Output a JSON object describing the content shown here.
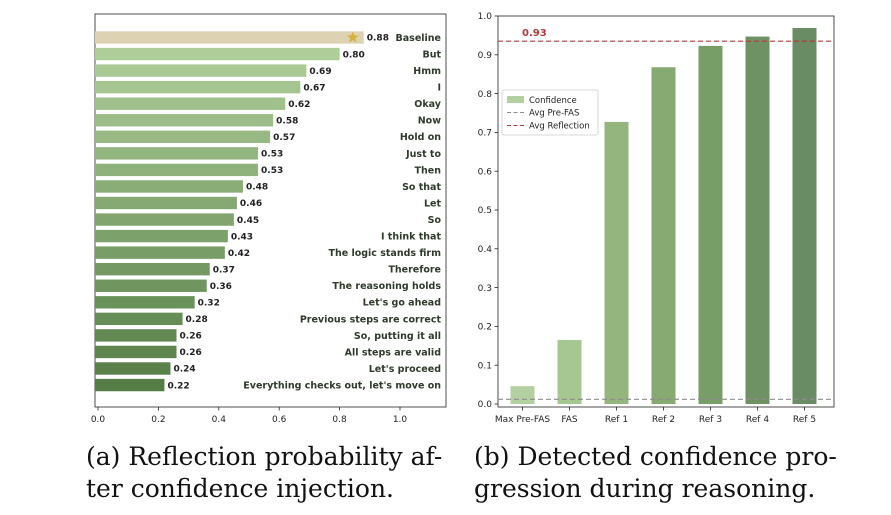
{
  "chart_data": [
    {
      "type": "bar",
      "orientation": "horizontal",
      "title": "",
      "xlabel": "",
      "ylabel": "",
      "xlim": [
        0,
        1.15
      ],
      "xticks": [
        "0.0",
        "0.2",
        "0.4",
        "0.6",
        "0.8",
        "1.0"
      ],
      "baseline_marker": "star",
      "categories": [
        "Baseline",
        "But",
        "Hmm",
        "I",
        "Okay",
        "Now",
        "Hold on",
        "Just to",
        "Then",
        "So that",
        "Let",
        "So",
        "I think that",
        "The logic stands firm",
        "Therefore",
        "The reasoning holds",
        "Let's go ahead",
        "Previous steps are correct",
        "So, putting it all",
        "All steps are valid",
        "Let's proceed",
        "Everything checks out, let's move on"
      ],
      "values": [
        0.88,
        0.8,
        0.69,
        0.67,
        0.62,
        0.58,
        0.57,
        0.53,
        0.53,
        0.48,
        0.46,
        0.45,
        0.43,
        0.42,
        0.37,
        0.36,
        0.32,
        0.28,
        0.26,
        0.26,
        0.24,
        0.22
      ],
      "value_labels": [
        "0.88",
        "0.80",
        "0.69",
        "0.67",
        "0.62",
        "0.58",
        "0.57",
        "0.53",
        "0.53",
        "0.48",
        "0.46",
        "0.45",
        "0.43",
        "0.42",
        "0.37",
        "0.36",
        "0.32",
        "0.28",
        "0.26",
        "0.26",
        "0.24",
        "0.22"
      ],
      "colors": {
        "baseline": "#ddd3b3",
        "gradient_start": "#aecd98",
        "gradient_end": "#557d45",
        "star": "#d8b13c"
      }
    },
    {
      "type": "bar",
      "title": "",
      "xlabel": "",
      "ylabel": "",
      "ylim": [
        0,
        1.0
      ],
      "yticks": [
        "0.0",
        "0.1",
        "0.2",
        "0.3",
        "0.4",
        "0.5",
        "0.6",
        "0.7",
        "0.8",
        "0.9",
        "1.0"
      ],
      "categories": [
        "Max Pre-FAS",
        "FAS",
        "Ref 1",
        "Ref 2",
        "Ref 3",
        "Ref 4",
        "Ref 5"
      ],
      "series": [
        {
          "name": "Confidence",
          "values": [
            0.046,
            0.165,
            0.727,
            0.868,
            0.923,
            0.947,
            0.969
          ]
        }
      ],
      "hlines": [
        {
          "name": "Avg Pre-FAS",
          "value": 0.012,
          "style": "dashed",
          "color": "#8c8c8c"
        },
        {
          "name": "Avg Reflection",
          "value": 0.935,
          "style": "dashed",
          "color": "#b23a3a",
          "label": "0.93"
        }
      ],
      "legend": {
        "position": "upper-left",
        "entries": [
          "Confidence",
          "Avg Pre-FAS",
          "Avg Reflection"
        ]
      },
      "colors": {
        "bars": [
          "#b3d0a0",
          "#a7c792",
          "#94b67e",
          "#86aa72",
          "#789e68",
          "#6f9264",
          "#6a8c65"
        ]
      }
    }
  ],
  "captions": {
    "a_line1": "(a) Reflection probability af-",
    "a_line2": "ter confidence injection.",
    "b_line1": "(b) Detected confidence pro-",
    "b_line2": "gression during reasoning."
  }
}
